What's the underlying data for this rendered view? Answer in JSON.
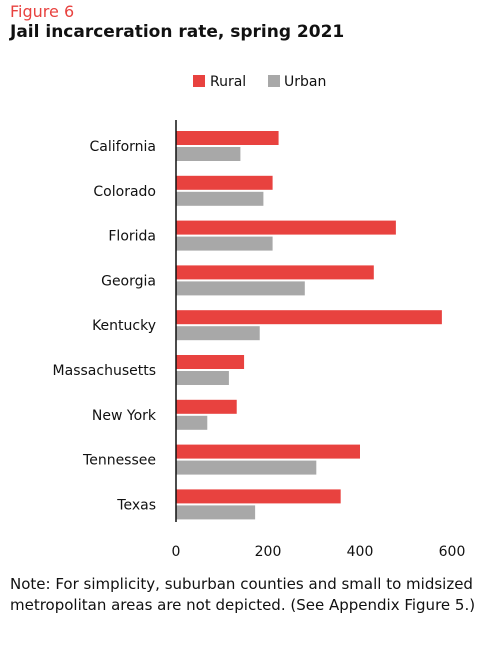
{
  "figure_label": "Figure 6",
  "note": "Note: For simplicity, suburban counties and small to midsized metropolitan areas are not depicted. (See Appendix Figure 5.)",
  "colors": {
    "rural": "#e8423f",
    "urban": "#a8a8a8",
    "accent": "#e8423f"
  },
  "chart_data": {
    "type": "bar",
    "orientation": "horizontal",
    "title": "Jail incarceration rate, spring 2021",
    "categories": [
      "California",
      "Colorado",
      "Florida",
      "Georgia",
      "Kentucky",
      "Massachusetts",
      "New York",
      "Tennessee",
      "Texas"
    ],
    "series": [
      {
        "name": "Rural",
        "values": [
          223,
          210,
          478,
          430,
          578,
          148,
          132,
          400,
          358
        ]
      },
      {
        "name": "Urban",
        "values": [
          140,
          190,
          210,
          280,
          182,
          115,
          68,
          305,
          172
        ]
      }
    ],
    "xticks": [
      "0",
      "200",
      "400",
      "600"
    ],
    "xlim": [
      0,
      600
    ],
    "legend": "top"
  }
}
